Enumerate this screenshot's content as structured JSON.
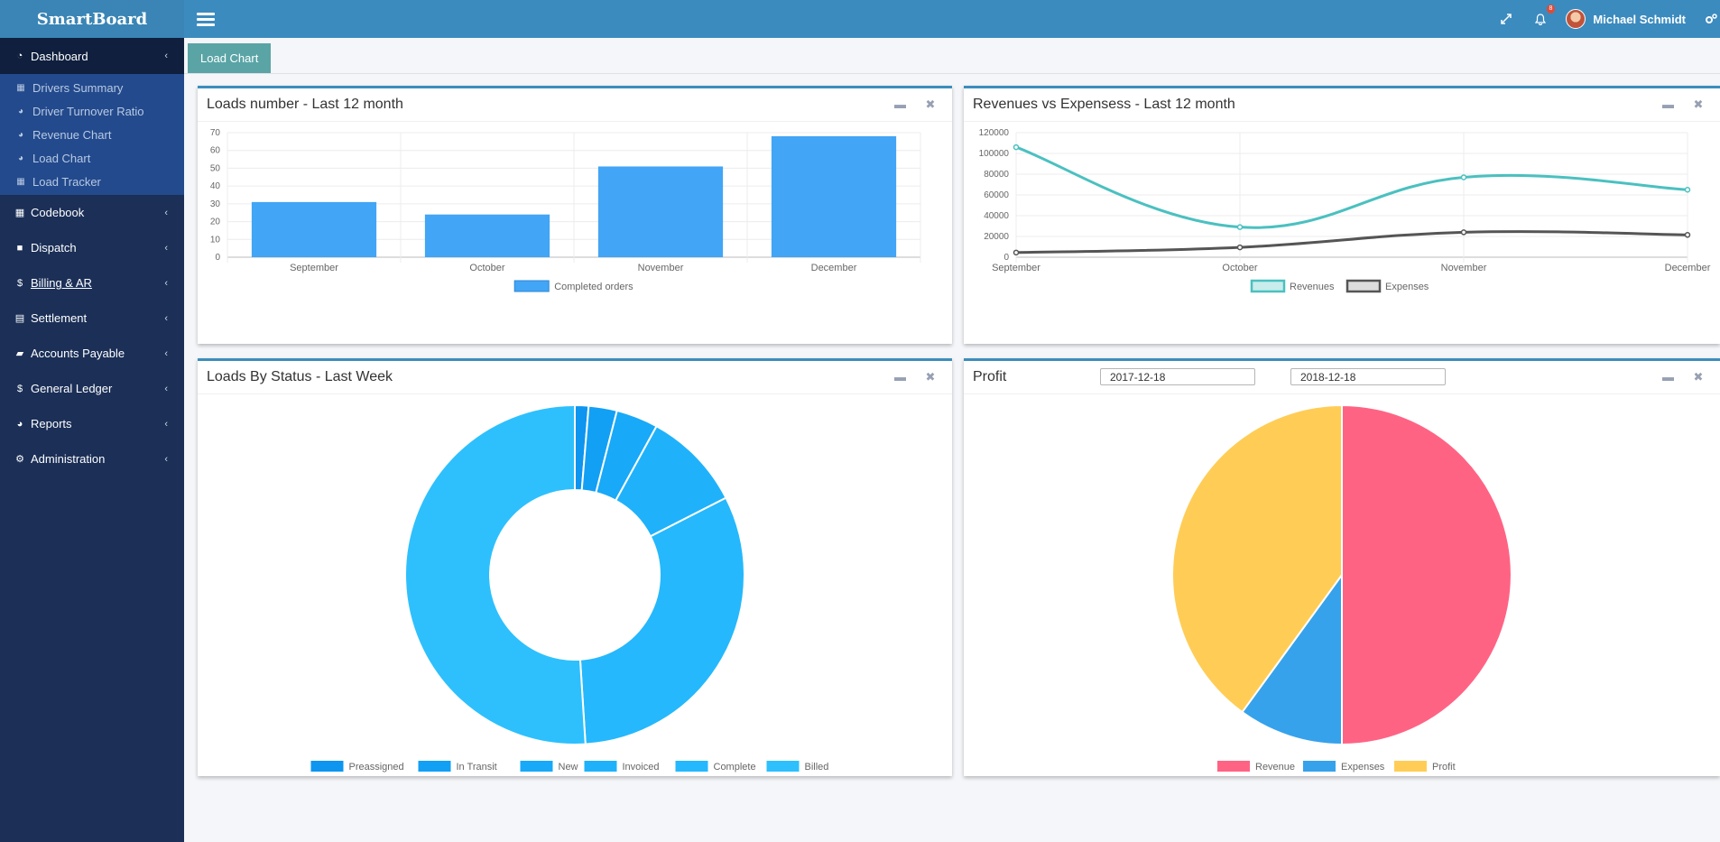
{
  "brand": "SmartBoard",
  "header": {
    "user_name": "Michael Schmidt",
    "notification_count": "8"
  },
  "sidebar": {
    "items": [
      {
        "label": "Dashboard",
        "icon": "dashboard-icon",
        "active": true
      },
      {
        "label": "Codebook",
        "icon": "grid-icon"
      },
      {
        "label": "Dispatch",
        "icon": "truck-icon"
      },
      {
        "label": "Billing & AR",
        "icon": "dollar-icon"
      },
      {
        "label": "Settlement",
        "icon": "calculator-icon"
      },
      {
        "label": "Accounts Payable",
        "icon": "book-icon"
      },
      {
        "label": "General Ledger",
        "icon": "dollar-icon"
      },
      {
        "label": "Reports",
        "icon": "pie-chart-icon"
      },
      {
        "label": "Administration",
        "icon": "cogs-icon"
      }
    ],
    "submenu": [
      {
        "label": "Drivers Summary",
        "icon": "grid-icon"
      },
      {
        "label": "Driver Turnover Ratio",
        "icon": "pie-chart-icon"
      },
      {
        "label": "Revenue Chart",
        "icon": "pie-chart-icon"
      },
      {
        "label": "Load Chart",
        "icon": "pie-chart-icon"
      },
      {
        "label": "Load Tracker",
        "icon": "grid-icon"
      }
    ]
  },
  "tabs": [
    {
      "label": "Load Chart"
    }
  ],
  "panels": {
    "loads": {
      "title": "Loads number - Last 12 month"
    },
    "revenues": {
      "title": "Revenues vs Expensess - Last 12 month"
    },
    "status": {
      "title": "Loads By Status - Last Week"
    },
    "profit": {
      "title": "Profit",
      "date_from": "2017-12-18",
      "date_to": "2018-12-18"
    }
  },
  "colors": {
    "topbar": "#3b8bbf",
    "sidebar": "#1b2f57",
    "box_border": "#3c8dbc",
    "bar": "#42a5f5",
    "revenues_line": "#4bc0c0",
    "expenses_line": "#555555",
    "revenue_slice": "#ff6384",
    "expenses_slice": "#36a2eb",
    "profit_slice": "#ffcd56"
  },
  "chart_data": [
    {
      "type": "bar",
      "categories": [
        "September",
        "October",
        "November",
        "December"
      ],
      "series": [
        {
          "name": "Completed orders",
          "values": [
            31,
            24,
            51,
            68
          ]
        }
      ],
      "ylim": [
        0,
        70
      ],
      "yticks": [
        0,
        10,
        20,
        30,
        40,
        50,
        60,
        70
      ],
      "grid": true,
      "legend": "bottom"
    },
    {
      "type": "line",
      "categories": [
        "September",
        "October",
        "November",
        "December"
      ],
      "series": [
        {
          "name": "Revenues",
          "values": [
            106000,
            29000,
            77000,
            65000
          ]
        },
        {
          "name": "Expenses",
          "values": [
            4500,
            9500,
            24000,
            21500
          ]
        }
      ],
      "ylim": [
        0,
        120000
      ],
      "yticks": [
        0,
        20000,
        40000,
        60000,
        80000,
        100000,
        120000
      ],
      "grid": true,
      "legend": "bottom"
    },
    {
      "type": "pie",
      "donut": true,
      "categories": [
        "Preassigned",
        "In Transit",
        "New",
        "Invoiced",
        "Complete",
        "Billed"
      ],
      "values": [
        1.3,
        2.7,
        4,
        9.5,
        31.5,
        51
      ],
      "colors": [
        "#0d95f0",
        "#12a0f5",
        "#18a9f8",
        "#1fb2fb",
        "#25b8fc",
        "#2dc0fd"
      ],
      "legend": "bottom"
    },
    {
      "type": "pie",
      "categories": [
        "Revenue",
        "Expenses",
        "Profit"
      ],
      "values": [
        50,
        10,
        40
      ],
      "colors": [
        "#ff6384",
        "#36a2eb",
        "#ffcd56"
      ],
      "legend": "bottom"
    }
  ]
}
